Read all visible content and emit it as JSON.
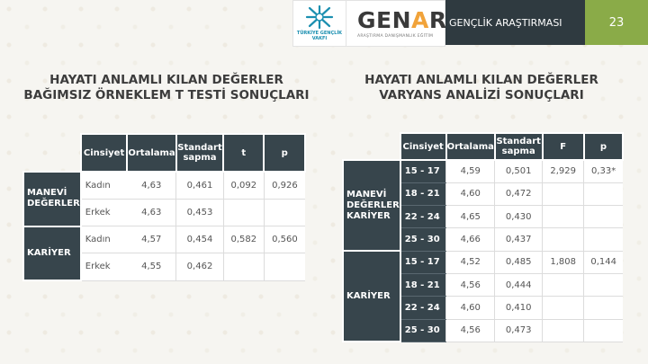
{
  "header": {
    "logo1_text": "TÜRKİYE GENÇLİK VAKFI",
    "logo2_main_pre": "GEN",
    "logo2_main_mid": "A",
    "logo2_main_post": "R",
    "logo2_sub": "ARAŞTIRMA DANIŞMANLIK EĞİTİM",
    "section_title": "GENÇLİK ARAŞTIRMASI",
    "page_number": "23"
  },
  "left": {
    "title_line1": "HAYATI ANLAMLI KILAN DEĞERLER",
    "title_line2": "BAĞIMSIZ ÖRNEKLEM T TESTİ SONUÇLARI",
    "headers": [
      "Cinsiyet",
      "Ortalama",
      "Standart sapma",
      "t",
      "p"
    ],
    "groups": [
      {
        "name": "MANEVİ DEĞERLER",
        "rows": [
          {
            "label": "Kadın",
            "mean": "4,63",
            "sd": "0,461",
            "t": "0,092",
            "p": "0,926"
          },
          {
            "label": "Erkek",
            "mean": "4,63",
            "sd": "0,453",
            "t": "",
            "p": ""
          }
        ]
      },
      {
        "name": "KARİYER",
        "rows": [
          {
            "label": "Kadın",
            "mean": "4,57",
            "sd": "0,454",
            "t": "0,582",
            "p": "0,560"
          },
          {
            "label": "Erkek",
            "mean": "4,55",
            "sd": "0,462",
            "t": "",
            "p": ""
          }
        ]
      }
    ]
  },
  "right": {
    "title_line1": "HAYATI ANLAMLI KILAN DEĞERLER",
    "title_line2": "VARYANS ANALİZİ SONUÇLARI",
    "headers": [
      "Cinsiyet",
      "Ortalama",
      "Standart sapma",
      "F",
      "p"
    ],
    "groups": [
      {
        "name": "MANEVİ DEĞERLER KARİYER",
        "rows": [
          {
            "age": "15 - 17",
            "mean": "4,59",
            "sd": "0,501",
            "f": "2,929",
            "p": "0,33*"
          },
          {
            "age": "18 - 21",
            "mean": "4,60",
            "sd": "0,472",
            "f": "",
            "p": ""
          },
          {
            "age": "22 - 24",
            "mean": "4,65",
            "sd": "0,430",
            "f": "",
            "p": ""
          },
          {
            "age": "25 - 30",
            "mean": "4,66",
            "sd": "0,437",
            "f": "",
            "p": ""
          }
        ]
      },
      {
        "name": "KARİYER",
        "rows": [
          {
            "age": "15 - 17",
            "mean": "4,52",
            "sd": "0,485",
            "f": "1,808",
            "p": "0,144"
          },
          {
            "age": "18 - 21",
            "mean": "4,56",
            "sd": "0,444",
            "f": "",
            "p": ""
          },
          {
            "age": "22 - 24",
            "mean": "4,60",
            "sd": "0,410",
            "f": "",
            "p": ""
          },
          {
            "age": "25 - 30",
            "mean": "4,56",
            "sd": "0,473",
            "f": "",
            "p": ""
          }
        ]
      }
    ]
  },
  "colors": {
    "header_dark": "#2f3a40",
    "page_num_green": "#8aab48",
    "table_dark": "#37454c",
    "accent_orange": "#f1a33a"
  }
}
